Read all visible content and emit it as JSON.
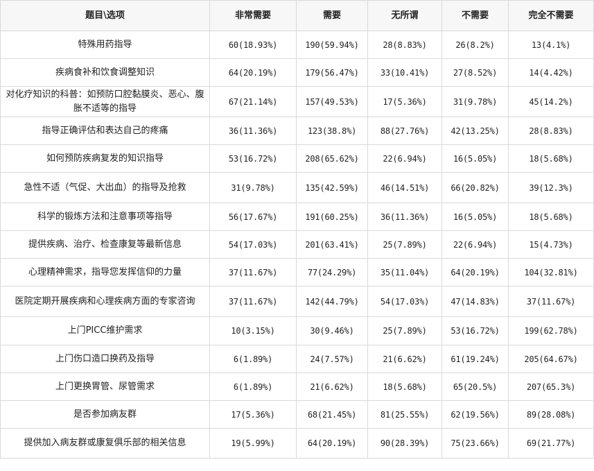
{
  "table": {
    "headers": [
      "题目\\选项",
      "非常需要",
      "需要",
      "无所谓",
      "不需要",
      "完全不需要"
    ],
    "rows": [
      {
        "question": "特殊用药指导",
        "values": [
          "60(18.93%)",
          "190(59.94%)",
          "28(8.83%)",
          "26(8.2%)",
          "13(4.1%)"
        ]
      },
      {
        "question": "疾病食补和饮食调整知识",
        "values": [
          "64(20.19%)",
          "179(56.47%)",
          "33(10.41%)",
          "27(8.52%)",
          "14(4.42%)"
        ]
      },
      {
        "question": "对化疗知识的科普：如预防口腔黏膜炎、恶心、腹胀不适等的指导",
        "values": [
          "67(21.14%)",
          "157(49.53%)",
          "17(5.36%)",
          "31(9.78%)",
          "45(14.2%)"
        ]
      },
      {
        "question": "指导正确评估和表达自己的疼痛",
        "values": [
          "36(11.36%)",
          "123(38.8%)",
          "88(27.76%)",
          "42(13.25%)",
          "28(8.83%)"
        ]
      },
      {
        "question": "如何预防疾病复发的知识指导",
        "values": [
          "53(16.72%)",
          "208(65.62%)",
          "22(6.94%)",
          "16(5.05%)",
          "18(5.68%)"
        ]
      },
      {
        "question": "急性不适（气促、大出血）的指导及抢救",
        "values": [
          "31(9.78%)",
          "135(42.59%)",
          "46(14.51%)",
          "66(20.82%)",
          "39(12.3%)"
        ]
      },
      {
        "question": "科学的锻炼方法和注意事项等指导",
        "values": [
          "56(17.67%)",
          "191(60.25%)",
          "36(11.36%)",
          "16(5.05%)",
          "18(5.68%)"
        ]
      },
      {
        "question": "提供疾病、治疗、检查康复等最新信息",
        "values": [
          "54(17.03%)",
          "201(63.41%)",
          "25(7.89%)",
          "22(6.94%)",
          "15(4.73%)"
        ]
      },
      {
        "question": "心理精神需求，指导您发挥信仰的力量",
        "values": [
          "37(11.67%)",
          "77(24.29%)",
          "35(11.04%)",
          "64(20.19%)",
          "104(32.81%)"
        ]
      },
      {
        "question": "医院定期开展疾病和心理疾病方面的专家咨询",
        "values": [
          "37(11.67%)",
          "142(44.79%)",
          "54(17.03%)",
          "47(14.83%)",
          "37(11.67%)"
        ]
      },
      {
        "question": "上门PICC维护需求",
        "values": [
          "10(3.15%)",
          "30(9.46%)",
          "25(7.89%)",
          "53(16.72%)",
          "199(62.78%)"
        ]
      },
      {
        "question": "上门伤口造口换药及指导",
        "values": [
          "6(1.89%)",
          "24(7.57%)",
          "21(6.62%)",
          "61(19.24%)",
          "205(64.67%)"
        ]
      },
      {
        "question": "上门更换胃管、尿管需求",
        "values": [
          "6(1.89%)",
          "21(6.62%)",
          "18(5.68%)",
          "65(20.5%)",
          "207(65.3%)"
        ]
      },
      {
        "question": "是否参加病友群",
        "values": [
          "17(5.36%)",
          "68(21.45%)",
          "81(25.55%)",
          "62(19.56%)",
          "89(28.08%)"
        ]
      },
      {
        "question": "提供加入病友群或康复俱乐部的相关信息",
        "values": [
          "19(5.99%)",
          "64(20.19%)",
          "90(28.39%)",
          "75(23.66%)",
          "69(21.77%)"
        ]
      }
    ]
  }
}
